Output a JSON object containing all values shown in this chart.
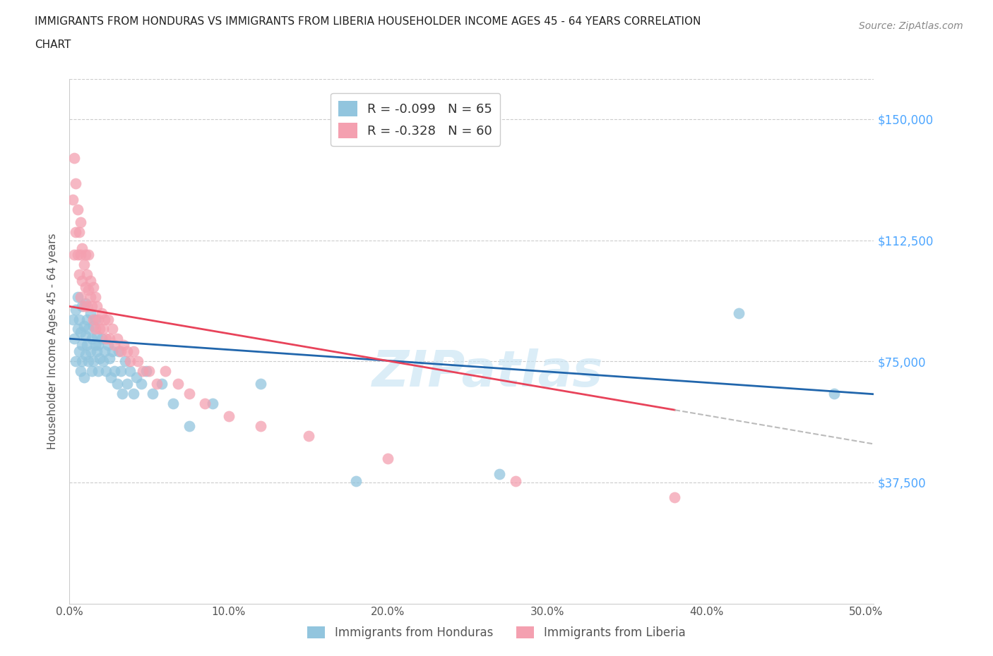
{
  "title_line1": "IMMIGRANTS FROM HONDURAS VS IMMIGRANTS FROM LIBERIA HOUSEHOLDER INCOME AGES 45 - 64 YEARS CORRELATION",
  "title_line2": "CHART",
  "source": "Source: ZipAtlas.com",
  "ylabel": "Householder Income Ages 45 - 64 years",
  "xlabel_ticks": [
    "0.0%",
    "10.0%",
    "20.0%",
    "30.0%",
    "40.0%",
    "50.0%"
  ],
  "ytick_labels": [
    "$37,500",
    "$75,000",
    "$112,500",
    "$150,000"
  ],
  "ytick_values": [
    37500,
    75000,
    112500,
    150000
  ],
  "ymin": 0,
  "ymax": 162500,
  "xmin": 0.0,
  "xmax": 0.505,
  "legend_honduras": "R = -0.099   N = 65",
  "legend_liberia": "R = -0.328   N = 60",
  "color_honduras": "#92C5DE",
  "color_liberia": "#F4A0B0",
  "color_trendline_honduras": "#2166AC",
  "color_trendline_liberia": "#E8435A",
  "color_ytick_labels": "#4da6ff",
  "watermark_text": "ZIPatlas",
  "honduras_x": [
    0.002,
    0.003,
    0.004,
    0.004,
    0.005,
    0.005,
    0.006,
    0.006,
    0.007,
    0.007,
    0.008,
    0.008,
    0.008,
    0.009,
    0.009,
    0.01,
    0.01,
    0.01,
    0.011,
    0.011,
    0.012,
    0.012,
    0.013,
    0.013,
    0.014,
    0.014,
    0.015,
    0.015,
    0.016,
    0.016,
    0.017,
    0.017,
    0.018,
    0.018,
    0.019,
    0.02,
    0.021,
    0.022,
    0.023,
    0.024,
    0.025,
    0.026,
    0.027,
    0.028,
    0.03,
    0.031,
    0.032,
    0.033,
    0.035,
    0.036,
    0.038,
    0.04,
    0.042,
    0.045,
    0.048,
    0.052,
    0.058,
    0.065,
    0.075,
    0.09,
    0.12,
    0.18,
    0.27,
    0.42,
    0.48
  ],
  "honduras_y": [
    88000,
    82000,
    75000,
    91000,
    85000,
    95000,
    78000,
    88000,
    72000,
    84000,
    80000,
    92000,
    75000,
    86000,
    70000,
    83000,
    77000,
    93000,
    80000,
    88000,
    75000,
    85000,
    78000,
    90000,
    82000,
    72000,
    86000,
    75000,
    80000,
    88000,
    78000,
    83000,
    72000,
    80000,
    76000,
    82000,
    75000,
    78000,
    72000,
    80000,
    76000,
    70000,
    78000,
    72000,
    68000,
    78000,
    72000,
    65000,
    75000,
    68000,
    72000,
    65000,
    70000,
    68000,
    72000,
    65000,
    68000,
    62000,
    55000,
    62000,
    68000,
    38000,
    40000,
    90000,
    65000
  ],
  "liberia_x": [
    0.002,
    0.003,
    0.003,
    0.004,
    0.004,
    0.005,
    0.005,
    0.006,
    0.006,
    0.007,
    0.007,
    0.007,
    0.008,
    0.008,
    0.009,
    0.009,
    0.01,
    0.01,
    0.011,
    0.011,
    0.012,
    0.012,
    0.013,
    0.013,
    0.014,
    0.015,
    0.015,
    0.016,
    0.016,
    0.017,
    0.018,
    0.019,
    0.02,
    0.021,
    0.022,
    0.023,
    0.024,
    0.025,
    0.027,
    0.028,
    0.03,
    0.032,
    0.034,
    0.036,
    0.038,
    0.04,
    0.043,
    0.046,
    0.05,
    0.055,
    0.06,
    0.068,
    0.075,
    0.085,
    0.1,
    0.12,
    0.15,
    0.2,
    0.28,
    0.38
  ],
  "liberia_y": [
    125000,
    138000,
    108000,
    130000,
    115000,
    122000,
    108000,
    115000,
    102000,
    118000,
    108000,
    95000,
    110000,
    100000,
    105000,
    92000,
    108000,
    98000,
    102000,
    92000,
    97000,
    108000,
    95000,
    100000,
    92000,
    98000,
    88000,
    95000,
    85000,
    92000,
    88000,
    85000,
    90000,
    85000,
    88000,
    82000,
    88000,
    82000,
    85000,
    80000,
    82000,
    78000,
    80000,
    78000,
    75000,
    78000,
    75000,
    72000,
    72000,
    68000,
    72000,
    68000,
    65000,
    62000,
    58000,
    55000,
    52000,
    45000,
    38000,
    33000
  ]
}
